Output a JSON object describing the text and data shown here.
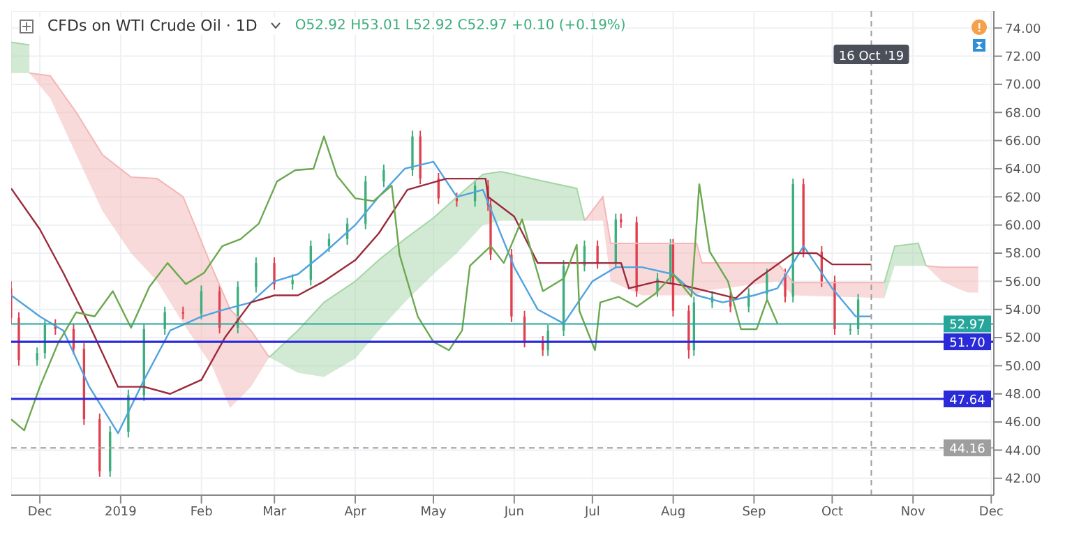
{
  "chart_data": {
    "type": "candlestick",
    "title": "CFDs on WTI Crude Oil · 1D",
    "subtitle": "O52.92 H53.01 L52.92 C52.97 +0.10 (+0.19%)",
    "x": [
      "2018-11-20",
      "2018-11-23",
      "2018-11-30",
      "2018-12-03",
      "2018-12-07",
      "2018-12-14",
      "2018-12-18",
      "2018-12-24",
      "2018-12-28",
      "2019-01-04",
      "2019-01-10",
      "2019-01-18",
      "2019-01-25",
      "2019-02-01",
      "2019-02-08",
      "2019-02-15",
      "2019-02-22",
      "2019-03-01",
      "2019-03-08",
      "2019-03-15",
      "2019-03-22",
      "2019-03-29",
      "2019-04-05",
      "2019-04-12",
      "2019-04-23",
      "2019-04-26",
      "2019-05-03",
      "2019-05-10",
      "2019-05-17",
      "2019-05-22",
      "2019-05-23",
      "2019-05-31",
      "2019-06-05",
      "2019-06-12",
      "2019-06-14",
      "2019-06-20",
      "2019-06-28",
      "2019-07-03",
      "2019-07-10",
      "2019-07-12",
      "2019-07-18",
      "2019-07-26",
      "2019-07-31",
      "2019-08-01",
      "2019-08-07",
      "2019-08-09",
      "2019-08-16",
      "2019-08-23",
      "2019-08-30",
      "2019-09-06",
      "2019-09-13",
      "2019-09-16",
      "2019-09-20",
      "2019-09-27",
      "2019-10-02",
      "2019-10-08",
      "2019-10-11",
      "2019-10-16"
    ],
    "ohlc": [
      [
        55.5,
        56.0,
        53.0,
        53.4
      ],
      [
        53.4,
        53.8,
        50.0,
        50.4
      ],
      [
        50.4,
        51.3,
        50.0,
        50.9
      ],
      [
        50.9,
        53.3,
        50.5,
        52.9
      ],
      [
        52.9,
        53.3,
        52.2,
        52.6
      ],
      [
        52.6,
        53.0,
        50.8,
        51.2
      ],
      [
        51.2,
        51.6,
        45.8,
        46.2
      ],
      [
        46.2,
        46.6,
        42.1,
        42.5
      ],
      [
        42.5,
        45.7,
        42.1,
        45.3
      ],
      [
        45.3,
        48.3,
        44.9,
        47.9
      ],
      [
        47.9,
        53.0,
        47.5,
        52.6
      ],
      [
        52.6,
        54.2,
        52.2,
        53.8
      ],
      [
        53.8,
        54.2,
        53.3,
        53.7
      ],
      [
        53.7,
        55.7,
        53.3,
        55.3
      ],
      [
        55.3,
        55.7,
        52.3,
        52.7
      ],
      [
        52.7,
        56.0,
        52.3,
        55.6
      ],
      [
        55.6,
        57.7,
        55.2,
        57.3
      ],
      [
        57.3,
        57.7,
        55.4,
        55.8
      ],
      [
        55.8,
        56.5,
        55.4,
        56.1
      ],
      [
        56.1,
        58.9,
        55.7,
        58.5
      ],
      [
        58.5,
        59.4,
        58.1,
        59.0
      ],
      [
        59.0,
        60.5,
        58.6,
        60.1
      ],
      [
        60.1,
        63.5,
        59.7,
        63.1
      ],
      [
        63.1,
        64.3,
        62.7,
        63.9
      ],
      [
        63.9,
        66.7,
        63.5,
        66.3
      ],
      [
        66.3,
        66.7,
        62.9,
        63.3
      ],
      [
        63.3,
        63.7,
        61.5,
        61.9
      ],
      [
        61.9,
        62.3,
        61.3,
        61.7
      ],
      [
        61.7,
        63.2,
        61.3,
        62.8
      ],
      [
        62.8,
        63.2,
        61.0,
        61.4
      ],
      [
        61.4,
        61.8,
        57.5,
        57.9
      ],
      [
        57.9,
        58.3,
        53.1,
        53.5
      ],
      [
        53.5,
        53.9,
        51.3,
        51.7
      ],
      [
        51.7,
        52.1,
        50.7,
        51.1
      ],
      [
        51.1,
        52.9,
        50.7,
        52.5
      ],
      [
        52.5,
        57.5,
        52.1,
        57.1
      ],
      [
        57.1,
        58.9,
        56.7,
        58.5
      ],
      [
        58.5,
        58.9,
        56.9,
        57.3
      ],
      [
        57.3,
        60.8,
        56.9,
        60.4
      ],
      [
        60.4,
        60.8,
        59.8,
        60.2
      ],
      [
        60.2,
        60.6,
        54.9,
        55.3
      ],
      [
        55.3,
        56.6,
        54.9,
        56.2
      ],
      [
        56.2,
        59.0,
        55.8,
        58.6
      ],
      [
        58.6,
        59.0,
        53.5,
        53.9
      ],
      [
        53.9,
        54.3,
        50.5,
        51.1
      ],
      [
        51.1,
        54.9,
        50.7,
        54.5
      ],
      [
        54.5,
        55.3,
        54.1,
        54.9
      ],
      [
        54.9,
        55.3,
        53.8,
        54.2
      ],
      [
        54.2,
        55.5,
        53.8,
        55.1
      ],
      [
        55.1,
        56.9,
        54.7,
        56.5
      ],
      [
        56.5,
        56.9,
        54.5,
        54.9
      ],
      [
        54.9,
        63.3,
        54.5,
        62.9
      ],
      [
        62.9,
        63.3,
        57.7,
        58.1
      ],
      [
        58.1,
        58.5,
        55.6,
        56.0
      ],
      [
        56.0,
        56.4,
        52.2,
        52.6
      ],
      [
        52.6,
        53.0,
        52.2,
        52.6
      ],
      [
        52.6,
        55.1,
        52.2,
        54.7
      ],
      [
        52.92,
        53.01,
        52.92,
        52.97
      ]
    ],
    "series": [
      {
        "type": "line",
        "color": "#a5d6a7",
        "x": [
          "2018-11-20",
          "2018-11-27"
        ],
        "values": [
          73.0,
          72.8
        ],
        "upper": [
          73.0,
          72.8
        ],
        "lower": [
          70.8,
          70.8
        ]
      },
      {
        "type": "line",
        "color": "#f4b6b6",
        "x": [
          "2018-11-27",
          "2018-12-05",
          "2018-12-15",
          "2018-12-25",
          "2019-01-05",
          "2019-01-15",
          "2019-01-25",
          "2019-02-05",
          "2019-02-12",
          "2019-02-20",
          "2019-02-27"
        ],
        "values": [
          70.8,
          70.6,
          68.0,
          65.0,
          63.4,
          63.3,
          62.0,
          57.0,
          54.0,
          52.5,
          50.6
        ],
        "upper": [
          70.8,
          70.6,
          68.0,
          65.0,
          63.4,
          63.3,
          62.0,
          57.0,
          54.0,
          52.5,
          50.6
        ],
        "lower": [
          70.8,
          69.0,
          65.0,
          61.0,
          58.0,
          56.0,
          53.0,
          50.0,
          47.0,
          48.5,
          50.6
        ]
      },
      {
        "type": "line",
        "color": "#a5d6a7",
        "x": [
          "2019-02-27",
          "2019-03-10",
          "2019-03-20",
          "2019-04-01",
          "2019-04-10",
          "2019-04-20",
          "2019-05-01",
          "2019-05-10",
          "2019-05-20",
          "2019-05-27",
          "2019-06-10",
          "2019-06-25",
          "2019-06-28"
        ],
        "values": [
          50.6,
          52.5,
          54.5,
          56.0,
          57.5,
          59.0,
          60.5,
          62.0,
          63.6,
          63.8,
          63.2,
          62.6,
          60.3
        ],
        "upper": [
          50.6,
          52.5,
          54.5,
          56.0,
          57.5,
          59.0,
          60.5,
          62.0,
          63.6,
          63.8,
          63.2,
          62.6,
          60.3
        ],
        "lower": [
          50.6,
          49.5,
          49.2,
          50.5,
          52.5,
          54.5,
          56.5,
          58.0,
          60.0,
          60.3,
          60.3,
          60.3,
          60.3
        ]
      },
      {
        "type": "line",
        "color": "#f4b6b6",
        "x": [
          "2019-06-28",
          "2019-07-05",
          "2019-07-08",
          "2019-07-20",
          "2019-08-10",
          "2019-08-12",
          "2019-09-10",
          "2019-09-16",
          "2019-10-21"
        ],
        "values": [
          60.3,
          62.0,
          58.7,
          58.7,
          58.7,
          57.3,
          57.3,
          55.9,
          55.9
        ],
        "upper": [
          60.3,
          62.0,
          58.7,
          58.7,
          58.7,
          57.3,
          57.3,
          55.9,
          55.9
        ],
        "lower": [
          60.3,
          60.3,
          56.0,
          55.0,
          55.0,
          55.3,
          56.0,
          55.0,
          54.8
        ]
      },
      {
        "type": "line",
        "color": "#a5d6a7",
        "x": [
          "2019-10-21",
          "2019-10-25",
          "2019-11-03",
          "2019-11-06"
        ],
        "values": [
          55.9,
          58.5,
          58.7,
          57.1
        ],
        "upper": [
          55.9,
          58.5,
          58.7,
          57.1
        ],
        "lower": [
          54.8,
          57.1,
          57.1,
          57.1
        ]
      },
      {
        "type": "line",
        "color": "#f4b6b6",
        "x": [
          "2019-11-06",
          "2019-11-12",
          "2019-11-18",
          "2019-11-22",
          "2019-11-26"
        ],
        "values": [
          57.1,
          57.0,
          57.0,
          57.0,
          57.0
        ],
        "upper": [
          57.1,
          57.0,
          57.0,
          57.0,
          57.0
        ],
        "lower": [
          57.1,
          56.0,
          55.5,
          55.2,
          55.2
        ]
      },
      {
        "type": "line",
        "color": "#4fa3e0",
        "x": [
          "2018-11-20",
          "2018-12-01",
          "2018-12-10",
          "2018-12-20",
          "2018-12-31",
          "2019-01-10",
          "2019-01-20",
          "2019-02-01",
          "2019-02-10",
          "2019-02-20",
          "2019-03-01",
          "2019-03-10",
          "2019-03-20",
          "2019-04-01",
          "2019-04-10",
          "2019-04-20",
          "2019-05-01",
          "2019-05-10",
          "2019-05-20",
          "2019-06-01",
          "2019-06-10",
          "2019-06-20",
          "2019-07-01",
          "2019-07-10",
          "2019-07-20",
          "2019-08-01",
          "2019-08-10",
          "2019-08-20",
          "2019-09-01",
          "2019-09-10",
          "2019-09-20",
          "2019-10-01",
          "2019-10-10",
          "2019-10-16"
        ],
        "values": [
          55.0,
          53.5,
          52.5,
          48.5,
          45.2,
          49.0,
          52.5,
          53.5,
          54.0,
          54.5,
          56.0,
          56.5,
          58.0,
          60.0,
          62.0,
          64.0,
          64.5,
          62.0,
          62.5,
          57.0,
          54.0,
          53.0,
          56.0,
          57.0,
          57.0,
          56.5,
          55.0,
          54.5,
          55.0,
          55.5,
          58.5,
          55.5,
          53.5,
          53.5
        ]
      },
      {
        "type": "line",
        "color": "#9c2a3a",
        "x": [
          "2018-11-20",
          "2018-12-01",
          "2018-12-10",
          "2018-12-20",
          "2018-12-31",
          "2019-01-10",
          "2019-01-20",
          "2019-02-01",
          "2019-02-10",
          "2019-02-20",
          "2019-03-01",
          "2019-03-10",
          "2019-03-20",
          "2019-04-01",
          "2019-04-10",
          "2019-04-21",
          "2019-05-06",
          "2019-05-21",
          "2019-05-22",
          "2019-06-01",
          "2019-06-10",
          "2019-07-12",
          "2019-07-15",
          "2019-07-26",
          "2019-08-05",
          "2019-08-25",
          "2019-09-01",
          "2019-09-16",
          "2019-09-25",
          "2019-10-01",
          "2019-10-16"
        ],
        "values": [
          62.6,
          59.7,
          56.6,
          52.9,
          48.5,
          48.5,
          48.0,
          49.0,
          52.0,
          54.5,
          55.0,
          55.0,
          56.0,
          57.5,
          59.4,
          62.5,
          63.3,
          63.3,
          62.0,
          60.6,
          57.3,
          57.3,
          55.5,
          56.0,
          55.7,
          54.8,
          56.0,
          58.0,
          58.0,
          57.2,
          57.2
        ]
      },
      {
        "type": "line",
        "color": "#6aa84f",
        "x": [
          "2018-11-20",
          "2018-11-25",
          "2018-12-01",
          "2018-12-08",
          "2018-12-15",
          "2018-12-22",
          "2018-12-29",
          "2019-01-05",
          "2019-01-12",
          "2019-01-19",
          "2019-01-26",
          "2019-02-02",
          "2019-02-09",
          "2019-02-16",
          "2019-02-23",
          "2019-03-02",
          "2019-03-09",
          "2019-03-16",
          "2019-03-20",
          "2019-03-25",
          "2019-04-01",
          "2019-04-08",
          "2019-04-15",
          "2019-04-18",
          "2019-04-25",
          "2019-05-01",
          "2019-05-07",
          "2019-05-12",
          "2019-05-15",
          "2019-05-23",
          "2019-05-28",
          "2019-06-04",
          "2019-06-12",
          "2019-06-20",
          "2019-06-25",
          "2019-06-26",
          "2019-07-02",
          "2019-07-04",
          "2019-07-11",
          "2019-07-18",
          "2019-07-25",
          "2019-08-01",
          "2019-08-08",
          "2019-08-11",
          "2019-08-15",
          "2019-08-22",
          "2019-08-27",
          "2019-09-02",
          "2019-09-06",
          "2019-09-10"
        ],
        "values": [
          46.2,
          45.4,
          48.5,
          51.6,
          53.8,
          53.5,
          55.3,
          52.7,
          55.6,
          57.3,
          55.8,
          56.6,
          58.5,
          59.0,
          60.1,
          63.1,
          63.9,
          64.0,
          66.3,
          63.5,
          61.9,
          61.7,
          62.8,
          57.9,
          53.5,
          51.7,
          51.1,
          52.5,
          57.1,
          58.5,
          57.3,
          60.4,
          55.3,
          56.2,
          58.6,
          53.9,
          51.1,
          54.5,
          54.9,
          54.2,
          55.1,
          56.5,
          54.9,
          62.9,
          58.1,
          56.0,
          52.6,
          52.6,
          54.7,
          53.0
        ]
      }
    ],
    "xlim": [
      "2018-11-20",
      "2019-12-02"
    ],
    "xticks": [
      {
        "value": "2018-12-01",
        "label": "Dec"
      },
      {
        "value": "2019-01-01",
        "label": "2019"
      },
      {
        "value": "2019-02-01",
        "label": "Feb"
      },
      {
        "value": "2019-03-01",
        "label": "Mar"
      },
      {
        "value": "2019-04-01",
        "label": "Apr"
      },
      {
        "value": "2019-05-01",
        "label": "May"
      },
      {
        "value": "2019-06-01",
        "label": "Jun"
      },
      {
        "value": "2019-07-01",
        "label": "Jul"
      },
      {
        "value": "2019-08-01",
        "label": "Aug"
      },
      {
        "value": "2019-09-01",
        "label": "Sep"
      },
      {
        "value": "2019-10-01",
        "label": "Oct"
      },
      {
        "value": "2019-11-01",
        "label": "Nov"
      },
      {
        "value": "2019-12-01",
        "label": "Dec"
      }
    ],
    "ylim": [
      40.8,
      75.2
    ],
    "yticks": [
      {
        "value": 42,
        "label": "42.00"
      },
      {
        "value": 44,
        "label": "44.00"
      },
      {
        "value": 46,
        "label": "46.00"
      },
      {
        "value": 48,
        "label": "48.00"
      },
      {
        "value": 50,
        "label": "50.00"
      },
      {
        "value": 52,
        "label": "52.00"
      },
      {
        "value": 54,
        "label": "54.00"
      },
      {
        "value": 56,
        "label": "56.00"
      },
      {
        "value": 58,
        "label": "58.00"
      },
      {
        "value": 60,
        "label": "60.00"
      },
      {
        "value": 62,
        "label": "62.00"
      },
      {
        "value": 64,
        "label": "64.00"
      },
      {
        "value": 66,
        "label": "66.00"
      },
      {
        "value": 68,
        "label": "68.00"
      },
      {
        "value": 70,
        "label": "70.00"
      },
      {
        "value": 72,
        "label": "72.00"
      },
      {
        "value": 74,
        "label": "74.00"
      }
    ],
    "ref_lines": [
      {
        "axis": "y",
        "value": 51.7,
        "label": "51.70",
        "color": "#2a2ad8",
        "line_style": "solid"
      },
      {
        "axis": "y",
        "value": 47.64,
        "label": "47.64",
        "color": "#2a2ad8",
        "line_style": "solid"
      },
      {
        "axis": "y",
        "value": 52.97,
        "label": "52.97",
        "color": "#26a69a",
        "line_style": "solid"
      },
      {
        "axis": "y",
        "value": 44.16,
        "label": "44.16",
        "color": "#9e9e9e",
        "line_style": "dashed"
      },
      {
        "axis": "x",
        "value": "2019-10-16",
        "label": "16 Oct '19",
        "color": "#9e9e9e",
        "line_style": "dashed"
      }
    ],
    "grid": true
  }
}
